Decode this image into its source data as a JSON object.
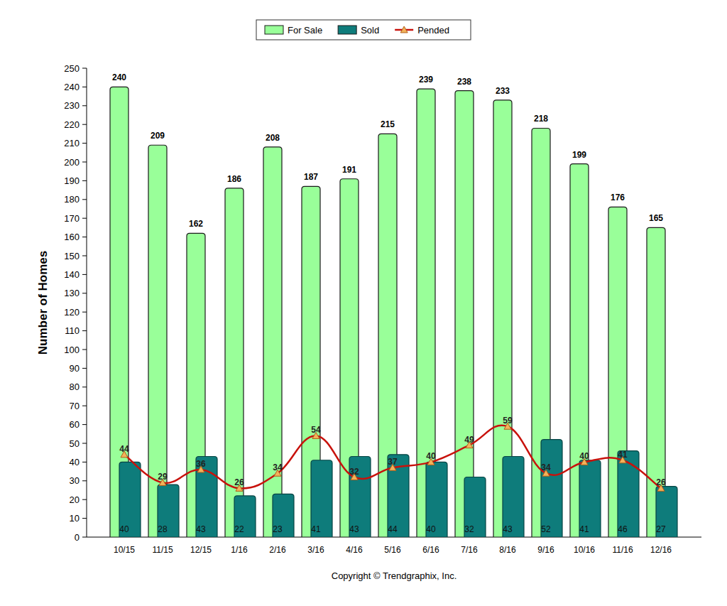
{
  "chart_data": {
    "type": "bar",
    "categories": [
      "10/15",
      "11/15",
      "12/15",
      "1/16",
      "2/16",
      "3/16",
      "4/16",
      "5/16",
      "6/16",
      "7/16",
      "8/16",
      "9/16",
      "10/16",
      "11/16",
      "12/16"
    ],
    "series": [
      {
        "name": "For Sale",
        "type": "bar",
        "color": "#99ff99",
        "values": [
          240,
          209,
          162,
          186,
          208,
          187,
          191,
          215,
          239,
          238,
          233,
          218,
          199,
          176,
          165
        ]
      },
      {
        "name": "Sold",
        "type": "bar",
        "color": "#0e7c7b",
        "values": [
          40,
          28,
          43,
          22,
          23,
          41,
          43,
          44,
          40,
          32,
          43,
          52,
          41,
          46,
          27
        ]
      },
      {
        "name": "Pended",
        "type": "line",
        "color": "#c8120c",
        "marker": "triangle",
        "values": [
          44,
          29,
          36,
          26,
          34,
          54,
          32,
          37,
          40,
          49,
          59,
          34,
          40,
          41,
          26
        ]
      }
    ],
    "y_label": "Number of Homes",
    "ylim": [
      0,
      250
    ],
    "yticks": [
      0,
      10,
      20,
      30,
      40,
      50,
      60,
      70,
      80,
      90,
      100,
      110,
      120,
      130,
      140,
      150,
      160,
      170,
      180,
      190,
      200,
      210,
      220,
      230,
      240,
      250
    ],
    "legend": "top",
    "data_labels": true,
    "annotations": [
      "Copyright © Trendgraphix, Inc."
    ]
  }
}
